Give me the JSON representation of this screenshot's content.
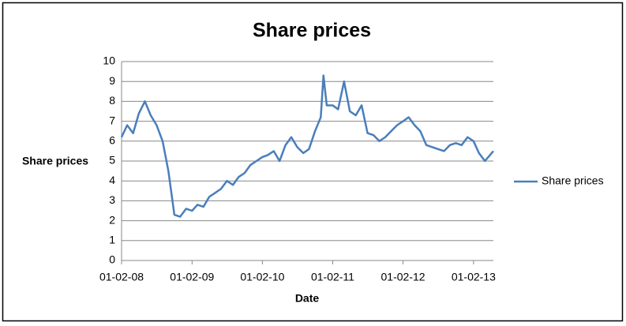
{
  "chart_data": {
    "type": "line",
    "title": "Share prices",
    "xlabel": "Date",
    "ylabel": "Share prices",
    "x": [
      "01-02-08",
      "01-03-08",
      "01-04-08",
      "01-05-08",
      "01-06-08",
      "01-07-08",
      "01-08-08",
      "01-09-08",
      "01-10-08",
      "01-11-08",
      "01-12-08",
      "01-01-09",
      "01-02-09",
      "01-03-09",
      "01-04-09",
      "01-05-09",
      "01-06-09",
      "01-07-09",
      "01-08-09",
      "01-09-09",
      "01-10-09",
      "01-11-09",
      "01-12-09",
      "01-01-10",
      "01-02-10",
      "01-03-10",
      "01-04-10",
      "01-05-10",
      "01-06-10",
      "01-07-10",
      "01-08-10",
      "01-09-10",
      "01-10-10",
      "01-11-10",
      "01-12-10",
      "15-12-10",
      "01-01-11",
      "01-02-11",
      "01-03-11",
      "01-04-11",
      "01-05-11",
      "01-06-11",
      "01-07-11",
      "01-08-11",
      "01-09-11",
      "01-10-11",
      "01-11-11",
      "01-12-11",
      "01-01-12",
      "01-02-12",
      "01-03-12",
      "01-04-12",
      "01-05-12",
      "01-06-12",
      "01-07-12",
      "01-08-12",
      "01-09-12",
      "01-10-12",
      "01-11-12",
      "01-12-12",
      "01-01-13",
      "01-02-13",
      "01-03-13",
      "01-04-13",
      "15-05-13"
    ],
    "series": [
      {
        "name": "Share prices",
        "color": "#4a7ebb",
        "values": [
          6.2,
          6.8,
          6.4,
          7.4,
          8.0,
          7.3,
          6.8,
          6.0,
          4.5,
          2.3,
          2.2,
          2.6,
          2.5,
          2.8,
          2.7,
          3.2,
          3.4,
          3.6,
          4.0,
          3.8,
          4.2,
          4.4,
          4.8,
          5.0,
          5.2,
          5.3,
          5.5,
          5.0,
          5.8,
          6.2,
          5.7,
          5.4,
          5.6,
          6.5,
          7.2,
          9.3,
          7.8,
          7.8,
          7.6,
          9.0,
          7.5,
          7.3,
          7.8,
          6.4,
          6.3,
          6.0,
          6.2,
          6.5,
          6.8,
          7.0,
          7.2,
          6.8,
          6.5,
          5.8,
          5.7,
          5.6,
          5.5,
          5.8,
          5.9,
          5.8,
          6.2,
          6.0,
          5.4,
          5.0,
          5.5
        ]
      }
    ],
    "xlim": [
      "01-02-08",
      "15-05-13"
    ],
    "xticks": [
      "01-02-08",
      "01-02-09",
      "01-02-10",
      "01-02-11",
      "01-02-12",
      "01-02-13"
    ],
    "ylim": [
      0,
      10
    ],
    "yticks": [
      0,
      1,
      2,
      3,
      4,
      5,
      6,
      7,
      8,
      9,
      10
    ],
    "grid": true,
    "legend": "right"
  }
}
